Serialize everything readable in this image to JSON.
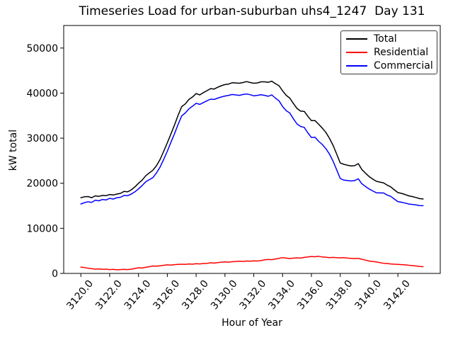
{
  "title": "Timeseries Load for urban-suburban uhs4_1247  Day 131",
  "axes": {
    "xlabel": "Hour of Year",
    "ylabel": "kW total"
  },
  "chart_data": {
    "type": "line",
    "title": "Timeseries Load for urban-suburban uhs4_1247  Day 131",
    "xlabel": "Hour of Year",
    "ylabel": "kW total",
    "xlim": [
      3118.81,
      3144.94
    ],
    "ylim": [
      0,
      55000
    ],
    "grid": false,
    "legend_position": "upper right",
    "x_ticks": [
      3120,
      3122,
      3124,
      3126,
      3128,
      3130,
      3132,
      3134,
      3136,
      3138,
      3140,
      3142
    ],
    "x_tick_labels": [
      "3120.0",
      "3122.0",
      "3124.0",
      "3126.0",
      "3128.0",
      "3130.0",
      "3132.0",
      "3134.0",
      "3136.0",
      "3138.0",
      "3140.0",
      "3142.0"
    ],
    "y_ticks": [
      0,
      10000,
      20000,
      30000,
      40000,
      50000
    ],
    "y_tick_labels": [
      "0",
      "10000",
      "20000",
      "30000",
      "40000",
      "50000"
    ],
    "x": [
      3120.0,
      3120.25,
      3120.5,
      3120.75,
      3121.0,
      3121.25,
      3121.5,
      3121.75,
      3122.0,
      3122.25,
      3122.5,
      3122.75,
      3123.0,
      3123.25,
      3123.5,
      3123.75,
      3124.0,
      3124.25,
      3124.5,
      3124.75,
      3125.0,
      3125.25,
      3125.5,
      3125.75,
      3126.0,
      3126.25,
      3126.5,
      3126.75,
      3127.0,
      3127.25,
      3127.5,
      3127.75,
      3128.0,
      3128.25,
      3128.5,
      3128.75,
      3129.0,
      3129.25,
      3129.5,
      3129.75,
      3130.0,
      3130.25,
      3130.5,
      3130.75,
      3131.0,
      3131.25,
      3131.5,
      3131.75,
      3132.0,
      3132.25,
      3132.5,
      3132.75,
      3133.0,
      3133.25,
      3133.5,
      3133.75,
      3134.0,
      3134.25,
      3134.5,
      3134.75,
      3135.0,
      3135.25,
      3135.5,
      3135.75,
      3136.0,
      3136.25,
      3136.5,
      3136.75,
      3137.0,
      3137.25,
      3137.5,
      3137.75,
      3138.0,
      3138.25,
      3138.5,
      3138.75,
      3139.0,
      3139.25,
      3139.5,
      3139.75,
      3140.0,
      3140.25,
      3140.5,
      3140.75,
      3141.0,
      3141.25,
      3141.5,
      3141.75,
      3142.0,
      3142.25,
      3142.5,
      3142.75,
      3143.0,
      3143.25,
      3143.5,
      3143.75
    ],
    "series": [
      {
        "name": "Total",
        "color": "#000000",
        "values": [
          16800,
          17000,
          17050,
          16800,
          17200,
          17100,
          17300,
          17250,
          17500,
          17400,
          17600,
          17750,
          18200,
          18100,
          18550,
          19200,
          20000,
          20700,
          21650,
          22300,
          22900,
          23900,
          25300,
          27100,
          29000,
          30950,
          32950,
          35100,
          37000,
          37600,
          38600,
          39150,
          39900,
          39600,
          40100,
          40550,
          41000,
          40900,
          41300,
          41650,
          41900,
          42000,
          42300,
          42250,
          42200,
          42350,
          42550,
          42350,
          42200,
          42250,
          42500,
          42500,
          42400,
          42650,
          42100,
          41650,
          40500,
          39500,
          38900,
          37700,
          36600,
          36000,
          35950,
          34850,
          33900,
          33900,
          33100,
          32250,
          31300,
          30000,
          28450,
          26500,
          24500,
          24200,
          24000,
          23850,
          23900,
          24350,
          23050,
          22250,
          21500,
          20950,
          20450,
          20250,
          20100,
          19600,
          19200,
          18550,
          17930,
          17750,
          17500,
          17200,
          17050,
          16850,
          16600,
          16520
        ]
      },
      {
        "name": "Residential",
        "color": "#ff0000",
        "values": [
          1400,
          1300,
          1150,
          1050,
          950,
          1000,
          900,
          950,
          850,
          900,
          800,
          850,
          900,
          850,
          950,
          1100,
          1250,
          1200,
          1350,
          1500,
          1650,
          1600,
          1700,
          1800,
          1900,
          1850,
          1950,
          2000,
          2050,
          2000,
          2100,
          2050,
          2150,
          2100,
          2200,
          2250,
          2350,
          2300,
          2400,
          2500,
          2550,
          2500,
          2600,
          2650,
          2700,
          2650,
          2750,
          2700,
          2800,
          2750,
          2850,
          3000,
          3100,
          3050,
          3200,
          3350,
          3500,
          3400,
          3300,
          3400,
          3450,
          3400,
          3550,
          3650,
          3750,
          3700,
          3800,
          3650,
          3600,
          3500,
          3550,
          3500,
          3450,
          3500,
          3400,
          3350,
          3300,
          3350,
          3150,
          2950,
          2750,
          2650,
          2550,
          2400,
          2250,
          2200,
          2100,
          2050,
          2000,
          1950,
          1900,
          1800,
          1750,
          1650,
          1550,
          1500
        ]
      },
      {
        "name": "Commercial",
        "color": "#0000ff",
        "values": [
          15400,
          15700,
          15900,
          15750,
          16250,
          16100,
          16400,
          16300,
          16650,
          16500,
          16800,
          16900,
          17300,
          17250,
          17600,
          18100,
          18750,
          19500,
          20300,
          20800,
          21250,
          22300,
          23600,
          25300,
          27100,
          29100,
          31000,
          33100,
          34950,
          35600,
          36500,
          37100,
          37750,
          37500,
          37900,
          38300,
          38650,
          38600,
          38900,
          39150,
          39350,
          39500,
          39700,
          39600,
          39500,
          39700,
          39800,
          39650,
          39400,
          39500,
          39650,
          39500,
          39300,
          39600,
          38900,
          38300,
          37000,
          36100,
          35600,
          34300,
          33150,
          32600,
          32400,
          31200,
          30150,
          30200,
          29300,
          28600,
          27700,
          26500,
          24900,
          23000,
          21050,
          20700,
          20600,
          20500,
          20600,
          21000,
          19900,
          19300,
          18750,
          18300,
          17900,
          17850,
          17850,
          17400,
          17100,
          16500,
          15930,
          15800,
          15600,
          15400,
          15300,
          15200,
          15050,
          15020
        ]
      }
    ]
  }
}
